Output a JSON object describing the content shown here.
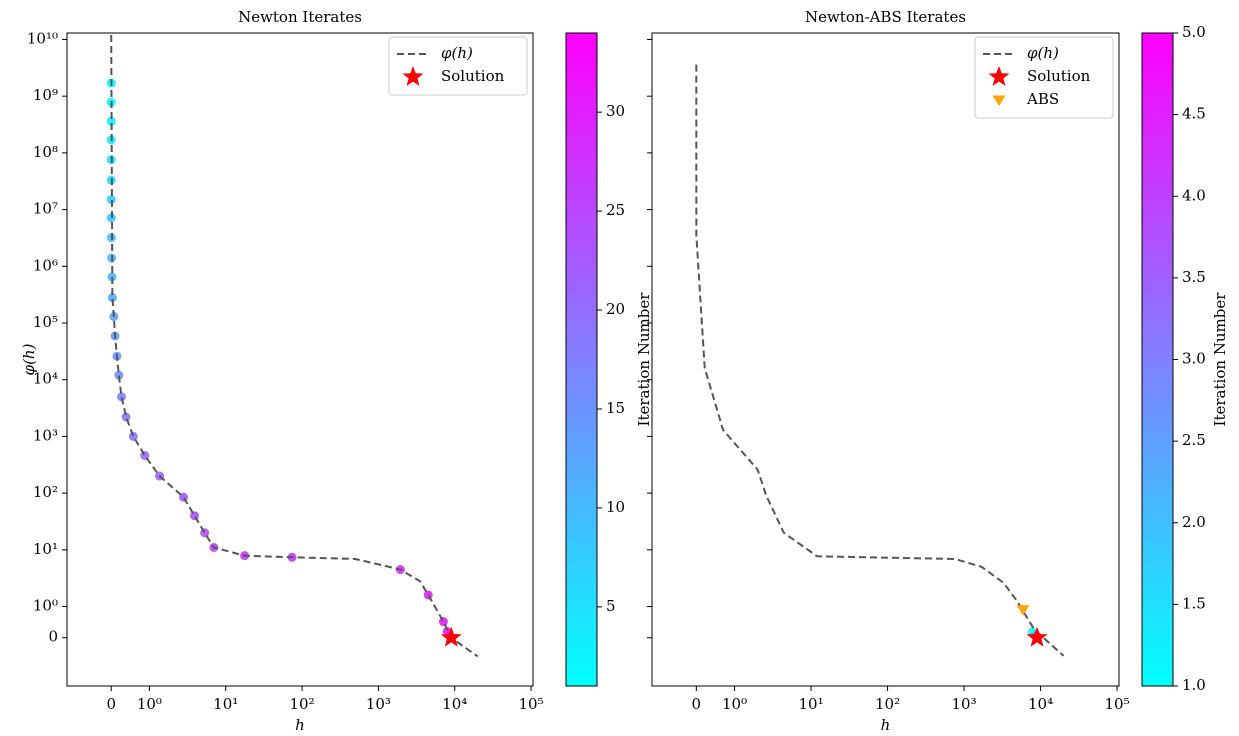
{
  "chart_data": [
    {
      "type": "scatter",
      "title": "Newton Iterates",
      "xlabel": "h",
      "ylabel": "φ(h)",
      "xscale": "symlog",
      "yscale": "symlog",
      "xlim": [
        -1.2,
        106000
      ],
      "ylim": [
        -2,
        13000000000
      ],
      "xticks": [
        0,
        {
          "value": 1,
          "label": "10⁰"
        },
        {
          "value": 10,
          "label": "10¹"
        },
        {
          "value": 100,
          "label": "10²"
        },
        {
          "value": 1000,
          "label": "10³"
        },
        {
          "value": 10000,
          "label": "10⁴"
        },
        {
          "value": 100000,
          "label": "10⁵"
        }
      ],
      "yticks": [
        0,
        {
          "value": 1,
          "label": "10⁰"
        },
        {
          "value": 10,
          "label": "10¹"
        },
        {
          "value": 100,
          "label": "10²"
        },
        {
          "value": 1000,
          "label": "10³"
        },
        {
          "value": 10000,
          "label": "10⁴"
        },
        {
          "value": 100000,
          "label": "10⁵"
        },
        {
          "value": 1000000,
          "label": "10⁶"
        },
        {
          "value": 10000000,
          "label": "10⁷"
        },
        {
          "value": 100000000,
          "label": "10⁸"
        },
        {
          "value": 1000000000,
          "label": "10⁹"
        },
        {
          "value": 10000000000,
          "label": "10¹⁰"
        }
      ],
      "yticklabels": true,
      "legend": "upper right",
      "series": [
        {
          "name": "φ(h)",
          "kind": "line",
          "color": "#555555",
          "x": [
            1e-06,
            0.03,
            0.07,
            0.1,
            0.15,
            0.2,
            0.27,
            0.39,
            0.58,
            0.88,
            1.36,
            2.8,
            3.9,
            5.3,
            7.0,
            17.7,
            74,
            500,
            1940,
            3500,
            4500,
            7100,
            9000,
            20000
          ],
          "values": [
            12000000000,
            280000,
            130000,
            59000,
            26000,
            12000,
            5000,
            2200,
            1000,
            460,
            200,
            85,
            40,
            20,
            11,
            7.9,
            7.4,
            6.9,
            4.5,
            2.8,
            1.6,
            0.52,
            0,
            -0.6
          ]
        },
        {
          "kind": "iterates",
          "x": [
            1e-05,
            2e-05,
            5e-05,
            0.0001,
            0.0002,
            0.0005,
            0.001,
            0.002,
            0.005,
            0.01,
            0.02,
            0.03,
            0.07,
            0.1,
            0.15,
            0.2,
            0.27,
            0.39,
            0.58,
            0.88,
            1.36,
            2.8,
            3.9,
            5.3,
            7.0,
            17.7,
            74,
            1940,
            4500,
            7100,
            8000,
            8700,
            8950,
            9000
          ],
          "values": [
            1700000000,
            780000000,
            360000000,
            170000000,
            76000000,
            33000000,
            15000000,
            7200000,
            3200000,
            1400000,
            650000,
            280000,
            130000,
            59000,
            26000,
            12000,
            5000,
            2200,
            1000,
            460,
            200,
            85,
            40,
            20,
            11,
            7.9,
            7.4,
            4.5,
            1.6,
            0.52,
            0.2,
            0.05,
            0.005,
            0.0001
          ],
          "c": [
            1,
            2,
            3,
            4,
            5,
            6,
            7,
            8,
            9,
            10,
            11,
            12,
            13,
            14,
            15,
            16,
            17,
            18,
            19,
            20,
            21,
            22,
            23,
            24,
            25,
            26,
            27,
            28,
            29,
            30,
            31,
            32,
            33,
            34
          ]
        },
        {
          "name": "Solution",
          "kind": "star",
          "color": "#ff0000",
          "x": [
            9000
          ],
          "values": [
            0
          ]
        }
      ],
      "colorbar": {
        "label": "Iteration Number",
        "cmap": "cool",
        "clim": [
          1,
          34
        ],
        "ticks": [
          5,
          10,
          15,
          20,
          25,
          30
        ]
      }
    },
    {
      "type": "scatter",
      "title": "Newton-ABS Iterates",
      "xlabel": "h",
      "xscale": "symlog",
      "yscale": "symlog",
      "xlim": [
        -1.2,
        106000
      ],
      "ylim": [
        -2,
        13000000000
      ],
      "xticks": [
        0,
        {
          "value": 1,
          "label": "10⁰"
        },
        {
          "value": 10,
          "label": "10¹"
        },
        {
          "value": 100,
          "label": "10²"
        },
        {
          "value": 1000,
          "label": "10³"
        },
        {
          "value": 10000,
          "label": "10⁴"
        },
        {
          "value": 100000,
          "label": "10⁵"
        }
      ],
      "yticks": [
        0,
        1,
        10,
        100,
        1000,
        10000,
        100000,
        1000000,
        10000000,
        100000000,
        1000000000,
        10000000000
      ],
      "yticklabels": false,
      "legend": "upper right",
      "series": [
        {
          "name": "φ(h)",
          "kind": "line",
          "color": "#555555",
          "x": [
            1e-06,
            0.001,
            0.22,
            0.7,
            2.0,
            2.6,
            4.4,
            12,
            83,
            760,
            1700,
            3300,
            4900,
            8300,
            20000
          ],
          "values": [
            3600000000,
            3500000,
            16000,
            1300,
            260,
            90,
            20,
            7.7,
            7.3,
            6.9,
            5.0,
            2.6,
            1.26,
            0.26,
            -0.58
          ]
        },
        {
          "kind": "iterates",
          "x": [
            7800,
            8500,
            8800,
            8950,
            9000
          ],
          "values": [
            0.19,
            0.08,
            0.02,
            0.003,
            0
          ],
          "c": [
            1,
            2,
            3,
            4,
            5
          ]
        },
        {
          "name": "Solution",
          "kind": "star",
          "color": "#ff0000",
          "x": [
            9000
          ],
          "values": [
            0
          ]
        },
        {
          "name": "ABS",
          "kind": "triangle",
          "color": "#ffa500",
          "x": [
            5900
          ],
          "values": [
            0.9
          ]
        }
      ],
      "colorbar": {
        "label": "Iteration Number",
        "cmap": "cool",
        "clim": [
          1,
          5
        ],
        "ticks": [
          {
            "value": 1,
            "label": "1.0"
          },
          1.5,
          {
            "value": 2,
            "label": "2.0"
          },
          2.5,
          {
            "value": 3,
            "label": "3.0"
          },
          3.5,
          {
            "value": 4,
            "label": "4.0"
          },
          4.5,
          {
            "value": 5,
            "label": "5.0"
          }
        ]
      }
    }
  ]
}
